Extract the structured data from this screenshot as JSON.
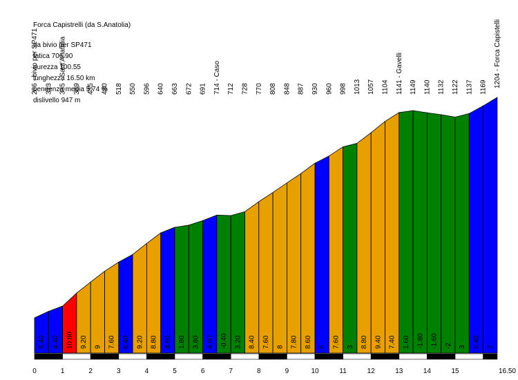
{
  "info": {
    "title": "Forca Capistrelli (da S.Anatolia)",
    "lines": [
      "da bivio per SP471",
      "fatica 706.90",
      "durezza 100.55",
      "lunghezza 16.50 km",
      "pendenza media 5.74 %",
      "dislivello 947 m"
    ]
  },
  "colors": {
    "blue": "#0000ff",
    "red": "#ff0000",
    "orange": "#e8a000",
    "green": "#008000",
    "axis_black": "#000000",
    "axis_white": "#ffffff"
  },
  "chart_data": {
    "type": "area",
    "title": "Forca Capistrelli (da S.Anatolia)",
    "xlabel": "",
    "ylabel": "",
    "xlim": [
      0,
      16.5
    ],
    "ylim": [
      0,
      1204
    ],
    "x_ticks": [
      "0",
      "1",
      "2",
      "3",
      "4",
      "5",
      "6",
      "7",
      "8",
      "9",
      "10",
      "11",
      "12",
      "13",
      "14",
      "15",
      "16.50"
    ],
    "profile": [
      {
        "x": 0,
        "elev": 286
      },
      {
        "x": 0.5,
        "elev": 313
      },
      {
        "x": 1,
        "elev": 335
      },
      {
        "x": 1.5,
        "elev": 389
      },
      {
        "x": 2,
        "elev": 435
      },
      {
        "x": 2.5,
        "elev": 480
      },
      {
        "x": 3,
        "elev": 518
      },
      {
        "x": 3.5,
        "elev": 550
      },
      {
        "x": 4,
        "elev": 596
      },
      {
        "x": 4.5,
        "elev": 640
      },
      {
        "x": 5,
        "elev": 663
      },
      {
        "x": 5.5,
        "elev": 672
      },
      {
        "x": 6,
        "elev": 691
      },
      {
        "x": 6.5,
        "elev": 714
      },
      {
        "x": 7,
        "elev": 712
      },
      {
        "x": 7.5,
        "elev": 728
      },
      {
        "x": 8,
        "elev": 770
      },
      {
        "x": 8.5,
        "elev": 808
      },
      {
        "x": 9,
        "elev": 848
      },
      {
        "x": 9.5,
        "elev": 887
      },
      {
        "x": 10,
        "elev": 930
      },
      {
        "x": 10.5,
        "elev": 960
      },
      {
        "x": 11,
        "elev": 998
      },
      {
        "x": 11.5,
        "elev": 1013
      },
      {
        "x": 12,
        "elev": 1057
      },
      {
        "x": 12.5,
        "elev": 1104
      },
      {
        "x": 13,
        "elev": 1141
      },
      {
        "x": 13.5,
        "elev": 1149
      },
      {
        "x": 14,
        "elev": 1140
      },
      {
        "x": 14.5,
        "elev": 1132
      },
      {
        "x": 15,
        "elev": 1122
      },
      {
        "x": 15.5,
        "elev": 1137
      },
      {
        "x": 16,
        "elev": 1169
      },
      {
        "x": 16.5,
        "elev": 1204
      }
    ],
    "point_labels": [
      "286 - bivio per SP471",
      "313",
      "335 - Sant'Anatolia",
      "389",
      "435",
      "480",
      "518",
      "550",
      "596",
      "640",
      "663",
      "672",
      "691",
      "714 - Caso",
      "712",
      "728",
      "770",
      "808",
      "848",
      "887",
      "930",
      "960",
      "998",
      "1013",
      "1057",
      "1104",
      "1141 - Gavelli",
      "1149",
      "1140",
      "1132",
      "1122",
      "1137",
      "1169",
      "1204 - Forca Capistelli"
    ],
    "segments": [
      {
        "grade": "5.40",
        "color": "blue"
      },
      {
        "grade": "4.40",
        "color": "blue"
      },
      {
        "grade": "10.80",
        "color": "red"
      },
      {
        "grade": "9.20",
        "color": "orange"
      },
      {
        "grade": "9",
        "color": "orange"
      },
      {
        "grade": "7.60",
        "color": "orange"
      },
      {
        "grade": "6.40",
        "color": "blue"
      },
      {
        "grade": "9.20",
        "color": "orange"
      },
      {
        "grade": "8.80",
        "color": "orange"
      },
      {
        "grade": "4.60",
        "color": "blue"
      },
      {
        "grade": "1.80",
        "color": "green"
      },
      {
        "grade": "3.80",
        "color": "green"
      },
      {
        "grade": "4.60",
        "color": "blue"
      },
      {
        "grade": "-0.40",
        "color": "green"
      },
      {
        "grade": "3.20",
        "color": "green"
      },
      {
        "grade": "8.40",
        "color": "orange"
      },
      {
        "grade": "7.60",
        "color": "orange"
      },
      {
        "grade": "8",
        "color": "orange"
      },
      {
        "grade": "7.80",
        "color": "orange"
      },
      {
        "grade": "8.60",
        "color": "orange"
      },
      {
        "grade": "6",
        "color": "blue"
      },
      {
        "grade": "7.60",
        "color": "orange"
      },
      {
        "grade": "3",
        "color": "green"
      },
      {
        "grade": "8.80",
        "color": "orange"
      },
      {
        "grade": "9.40",
        "color": "orange"
      },
      {
        "grade": "7.40",
        "color": "orange"
      },
      {
        "grade": "1.60",
        "color": "green"
      },
      {
        "grade": "-1.80",
        "color": "green"
      },
      {
        "grade": "-1.60",
        "color": "green"
      },
      {
        "grade": "-2",
        "color": "green"
      },
      {
        "grade": "3",
        "color": "green"
      },
      {
        "grade": "6.40",
        "color": "blue"
      },
      {
        "grade": "7",
        "color": "blue"
      }
    ]
  }
}
